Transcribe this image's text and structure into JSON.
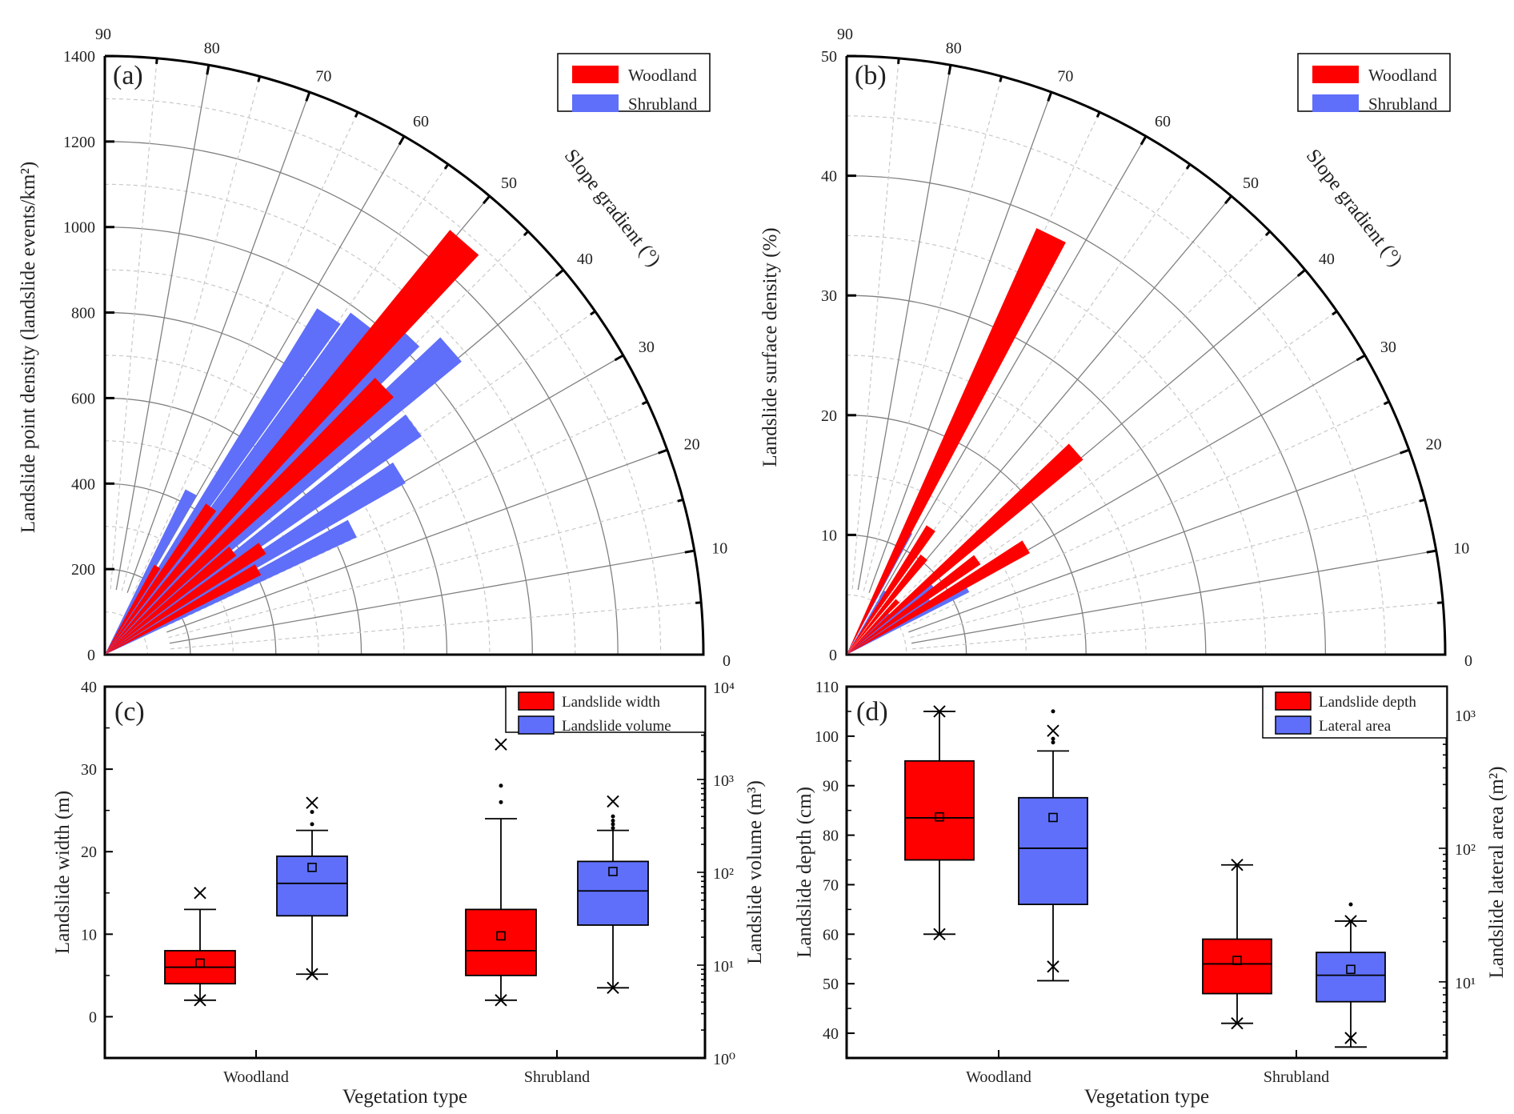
{
  "chart_data": [
    {
      "id": "a",
      "type": "polar-bar",
      "panel_label": "(a)",
      "ylabel": "Landslide point density (landslide events/km²)",
      "angle_label": "Slope gradient (°)",
      "radial_range": [
        0,
        1400
      ],
      "radial_ticks": [
        0,
        200,
        400,
        600,
        800,
        1000,
        1200,
        1400
      ],
      "angle_range": [
        0,
        90
      ],
      "angle_ticks": [
        0,
        10,
        20,
        30,
        40,
        50,
        60,
        70,
        80,
        90
      ],
      "grid": true,
      "legend": {
        "position": "top-right",
        "entries": [
          "Woodland",
          "Shrubland"
        ]
      },
      "series": [
        {
          "name": "Shrubland",
          "color": "#5f6ff9",
          "points": [
            {
              "angle": 62,
              "value": 430
            },
            {
              "angle": 56.5,
              "value": 950
            },
            {
              "angle": 52.3,
              "value": 985
            },
            {
              "angle": 46.4,
              "value": 1030
            },
            {
              "angle": 41.4,
              "value": 1080
            },
            {
              "angle": 36.6,
              "value": 900
            },
            {
              "angle": 31.7,
              "value": 810
            },
            {
              "angle": 27,
              "value": 650
            }
          ]
        },
        {
          "name": "Woodland",
          "color": "#ff0000",
          "points": [
            {
              "angle": 59.2,
              "value": 240
            },
            {
              "angle": 54.2,
              "value": 425
            },
            {
              "angle": 48.9,
              "value": 1280
            },
            {
              "angle": 43.7,
              "value": 905
            },
            {
              "angle": 39,
              "value": 385
            },
            {
              "angle": 34,
              "value": 445
            },
            {
              "angle": 29,
              "value": 410
            }
          ]
        }
      ]
    },
    {
      "id": "b",
      "type": "polar-bar",
      "panel_label": "(b)",
      "ylabel": "Landslide surface density (%)",
      "angle_label": "Slope gradient (°)",
      "radial_range": [
        0,
        50
      ],
      "radial_ticks": [
        0,
        10,
        20,
        30,
        40,
        50
      ],
      "angle_range": [
        0,
        90
      ],
      "angle_ticks": [
        0,
        10,
        20,
        30,
        40,
        50,
        60,
        70,
        80,
        90
      ],
      "grid": true,
      "legend": {
        "position": "top-right",
        "entries": [
          "Woodland",
          "Shrubland"
        ]
      },
      "series": [
        {
          "name": "Shrubland",
          "color": "#5f6ff9",
          "points": [
            {
              "angle": 63.5,
              "value": 11.5
            },
            {
              "angle": 58,
              "value": 6.2
            },
            {
              "angle": 45,
              "value": 4.9
            },
            {
              "angle": 39,
              "value": 9.2
            },
            {
              "angle": 33.5,
              "value": 8.3
            },
            {
              "angle": 29,
              "value": 11.5
            }
          ]
        },
        {
          "name": "Woodland",
          "color": "#ff0000",
          "points": [
            {
              "angle": 64,
              "value": 39
            },
            {
              "angle": 56.3,
              "value": 12.7
            },
            {
              "angle": 51.5,
              "value": 10.4
            },
            {
              "angle": 46.5,
              "value": 6.2
            },
            {
              "angle": 41.5,
              "value": 25.6
            },
            {
              "angle": 36,
              "value": 13.5
            },
            {
              "angle": 31,
              "value": 17.5
            }
          ]
        }
      ]
    },
    {
      "id": "c",
      "type": "box",
      "panel_label": "(c)",
      "xlabel": "Vegetation type",
      "ylabel": "Landslide width (m)",
      "ylabel_right": "Landslide volume (m³)",
      "categories": [
        "Woodland",
        "Shrubland"
      ],
      "ylim": [
        -5,
        40
      ],
      "yticks": [
        0,
        10,
        20,
        30,
        40
      ],
      "ylim_right_log10": [
        0,
        4
      ],
      "yticks_right": [
        "10⁰",
        "10¹",
        "10²",
        "10³",
        "10⁴"
      ],
      "legend": {
        "position": "top-right",
        "entries": [
          "Landslide width",
          "Landslide volume"
        ]
      },
      "series": [
        {
          "name": "Landslide width",
          "axis": "left",
          "color": "#ff0000",
          "boxes": [
            {
              "category": "Woodland",
              "whisker_low": 2,
              "q1": 4,
              "median": 6,
              "q3": 8,
              "whisker_high": 13,
              "mean": 6.5,
              "min_marker": 2,
              "max_marker": 15,
              "outliers": []
            },
            {
              "category": "Shrubland",
              "whisker_low": 2,
              "q1": 5,
              "median": 8,
              "q3": 13,
              "whisker_high": 24,
              "mean": 9.8,
              "min_marker": 2,
              "max_marker": 33,
              "outliers": [
                26,
                28
              ]
            }
          ]
        },
        {
          "name": "Landslide volume",
          "axis": "right",
          "color": "#5f6ff9",
          "boxes": [
            {
              "category": "Woodland",
              "whisker_low": 8,
              "q1": 34,
              "median": 76,
              "q3": 149,
              "whisker_high": 283,
              "mean": 113,
              "min_marker": 8,
              "max_marker": 560,
              "outliers": [
                330,
                447
              ]
            },
            {
              "category": "Shrubland",
              "whisker_low": 5.7,
              "q1": 27,
              "median": 63,
              "q3": 131,
              "whisker_high": 283,
              "mean": 102,
              "min_marker": 5.7,
              "max_marker": 580,
              "outliers": [
                300,
                330,
                360,
                400
              ]
            }
          ]
        }
      ]
    },
    {
      "id": "d",
      "type": "box",
      "panel_label": "(d)",
      "xlabel": "Vegetation type",
      "ylabel": "Landslide depth (cm)",
      "ylabel_right": "Landslide lateral area (m²)",
      "categories": [
        "Woodland",
        "Shrubland"
      ],
      "ylim": [
        35,
        110
      ],
      "yticks": [
        40,
        50,
        60,
        70,
        80,
        90,
        100,
        110
      ],
      "ylim_right_log10": [
        0.43,
        3.21
      ],
      "yticks_right": [
        "10¹",
        "10²",
        "10³"
      ],
      "legend": {
        "position": "top-right",
        "entries": [
          "Landslide depth",
          "Lateral area"
        ]
      },
      "series": [
        {
          "name": "Landslide depth",
          "axis": "left",
          "color": "#ff0000",
          "boxes": [
            {
              "category": "Woodland",
              "whisker_low": 60,
              "q1": 75,
              "median": 83.5,
              "q3": 95,
              "whisker_high": 105,
              "mean": 83.7,
              "min_marker": 60,
              "max_marker": 105,
              "outliers": []
            },
            {
              "category": "Shrubland",
              "whisker_low": 42,
              "q1": 48,
              "median": 54,
              "q3": 59,
              "whisker_high": 74,
              "mean": 54.7,
              "min_marker": 42,
              "max_marker": 74,
              "outliers": []
            }
          ]
        },
        {
          "name": "Lateral area",
          "axis": "right",
          "color": "#5f6ff9",
          "boxes": [
            {
              "category": "Woodland",
              "whisker_low": 10.2,
              "q1": 38,
              "median": 100,
              "q3": 239,
              "whisker_high": 535,
              "mean": 170,
              "min_marker": 13,
              "max_marker": 757,
              "outliers": [
                620,
                660,
                1060
              ]
            },
            {
              "category": "Shrubland",
              "whisker_low": 3.25,
              "q1": 7.1,
              "median": 11.2,
              "q3": 16.6,
              "whisker_high": 28.5,
              "mean": 12.4,
              "min_marker": 3.8,
              "max_marker": 28.5,
              "outliers": [
                38
              ]
            }
          ]
        }
      ]
    }
  ]
}
